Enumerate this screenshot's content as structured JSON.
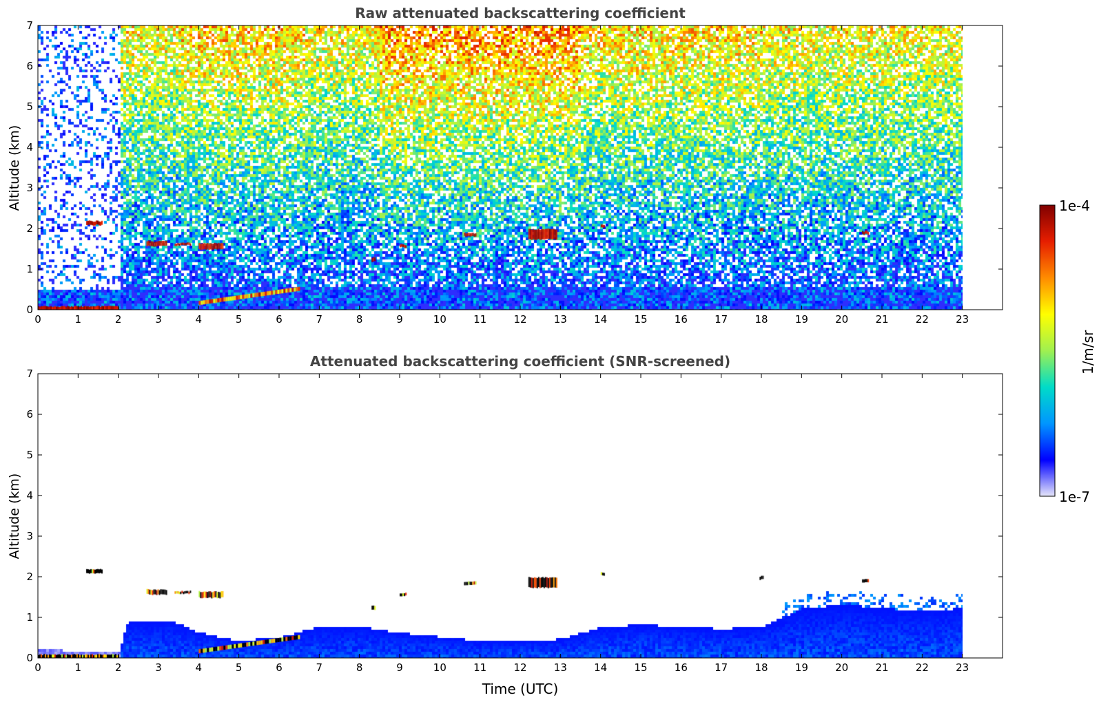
{
  "chart_data": [
    {
      "type": "heatmap",
      "title": "Raw attenuated backscattering coefficient",
      "xlabel": "",
      "ylabel": "Altitude (km)",
      "xlim": [
        0,
        24
      ],
      "ylim": [
        0,
        7
      ],
      "x_ticks": [
        "0",
        "1",
        "2",
        "3",
        "4",
        "5",
        "6",
        "7",
        "8",
        "9",
        "10",
        "11",
        "12",
        "13",
        "14",
        "15",
        "16",
        "17",
        "18",
        "19",
        "20",
        "21",
        "22",
        "23"
      ],
      "y_ticks": [
        "0",
        "1",
        "2",
        "3",
        "4",
        "5",
        "6",
        "7"
      ],
      "data_extent_x": [
        0,
        23
      ],
      "colorscale": "log",
      "features": [
        {
          "name": "surface layer",
          "x": [
            0,
            2
          ],
          "y": [
            0,
            0.1
          ],
          "level": "high"
        },
        {
          "name": "cloud",
          "x": [
            1.2,
            1.6
          ],
          "y": [
            2.1,
            2.2
          ],
          "level": "high"
        },
        {
          "name": "cloud",
          "x": [
            2.7,
            3.2
          ],
          "y": [
            1.58,
            1.7
          ],
          "level": "high"
        },
        {
          "name": "cloud",
          "x": [
            3.4,
            3.8
          ],
          "y": [
            1.6,
            1.66
          ],
          "level": "high"
        },
        {
          "name": "cloud",
          "x": [
            4.0,
            4.6
          ],
          "y": [
            1.5,
            1.65
          ],
          "level": "high"
        },
        {
          "name": "rising aerosol layer",
          "x": [
            4.0,
            6.5
          ],
          "y": [
            0.15,
            0.5
          ],
          "level": "medium-high"
        },
        {
          "name": "cloud",
          "x": [
            8.3,
            8.4
          ],
          "y": [
            1.2,
            1.3
          ],
          "level": "high"
        },
        {
          "name": "cloud",
          "x": [
            9.0,
            9.15
          ],
          "y": [
            1.55,
            1.62
          ],
          "level": "high"
        },
        {
          "name": "cloud",
          "x": [
            10.6,
            10.9
          ],
          "y": [
            1.82,
            1.9
          ],
          "level": "high"
        },
        {
          "name": "cloud",
          "x": [
            12.2,
            12.9
          ],
          "y": [
            1.75,
            2.0
          ],
          "level": "high"
        },
        {
          "name": "cloud",
          "x": [
            14.0,
            14.1
          ],
          "y": [
            2.05,
            2.12
          ],
          "level": "high"
        },
        {
          "name": "cloud",
          "x": [
            17.95,
            18.05
          ],
          "y": [
            1.95,
            2.03
          ],
          "level": "high"
        },
        {
          "name": "cloud",
          "x": [
            20.5,
            20.65
          ],
          "y": [
            1.87,
            1.95
          ],
          "level": "high"
        }
      ]
    },
    {
      "type": "heatmap",
      "title": "Attenuated backscattering coefficient (SNR-screened)",
      "xlabel": "Time (UTC)",
      "ylabel": "Altitude (km)",
      "xlim": [
        0,
        24
      ],
      "ylim": [
        0,
        7
      ],
      "x_ticks": [
        "0",
        "1",
        "2",
        "3",
        "4",
        "5",
        "6",
        "7",
        "8",
        "9",
        "10",
        "11",
        "12",
        "13",
        "14",
        "15",
        "16",
        "17",
        "18",
        "19",
        "20",
        "21",
        "22",
        "23"
      ],
      "y_ticks": [
        "0",
        "1",
        "2",
        "3",
        "4",
        "5",
        "6",
        "7"
      ],
      "data_extent_x": [
        0,
        23
      ],
      "colorscale": "log",
      "boundary_layer_top_km": [
        [
          0,
          0.28
        ],
        [
          1,
          0.18
        ],
        [
          2,
          0.2
        ],
        [
          2.2,
          0.9
        ],
        [
          3,
          0.9
        ],
        [
          3.3,
          0.95
        ],
        [
          4,
          0.65
        ],
        [
          5,
          0.45
        ],
        [
          6,
          0.55
        ],
        [
          7,
          0.8
        ],
        [
          8,
          0.8
        ],
        [
          9,
          0.65
        ],
        [
          10,
          0.55
        ],
        [
          11,
          0.45
        ],
        [
          12,
          0.45
        ],
        [
          13,
          0.5
        ],
        [
          14,
          0.8
        ],
        [
          15,
          0.85
        ],
        [
          16,
          0.8
        ],
        [
          17,
          0.75
        ],
        [
          18,
          0.8
        ],
        [
          19,
          1.25
        ],
        [
          20,
          1.35
        ],
        [
          21,
          1.25
        ],
        [
          22,
          1.2
        ],
        [
          23,
          1.25
        ]
      ]
    }
  ],
  "colorbar": {
    "label": "1/m/sr",
    "max_label": "1e-4",
    "min_label": "1e-7",
    "colors": [
      "#e6e6fa",
      "#0000ff",
      "#0096ff",
      "#00dcc8",
      "#a0f050",
      "#ffff00",
      "#ff8c00",
      "#e61e00",
      "#800000"
    ]
  }
}
